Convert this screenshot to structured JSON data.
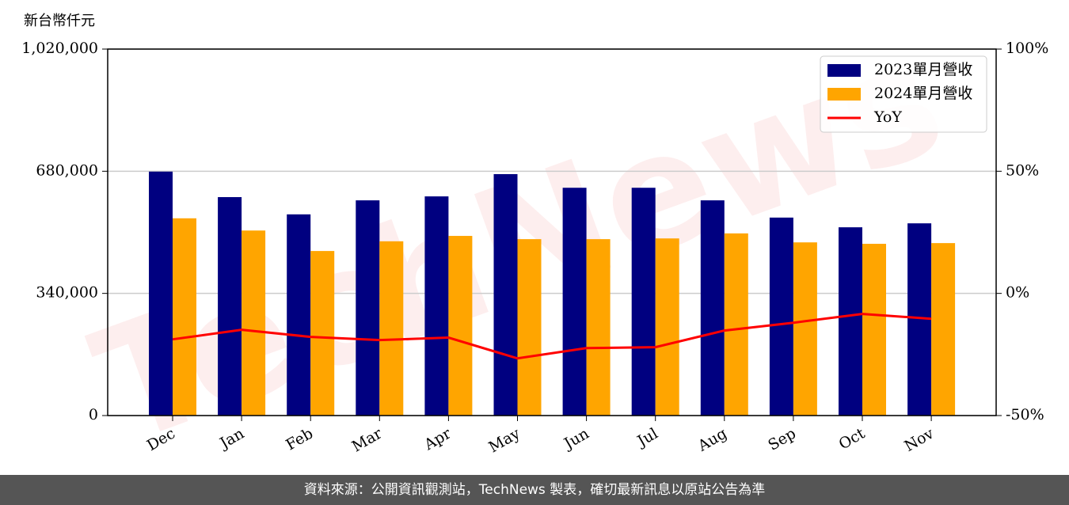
{
  "chart_data": {
    "type": "bar-line",
    "y_label": "新台幣仟元",
    "categories": [
      "Dec",
      "Jan",
      "Feb",
      "Mar",
      "Apr",
      "May",
      "Jun",
      "Jul",
      "Aug",
      "Sep",
      "Oct",
      "Nov"
    ],
    "series": [
      {
        "name": "2023單月營收",
        "color": "#000080",
        "type": "bar",
        "values": [
          679000,
          608000,
          560000,
          599000,
          610000,
          672000,
          634000,
          634000,
          599000,
          551000,
          524000,
          535000
        ]
      },
      {
        "name": "2024單月營收",
        "color": "#ffa500",
        "type": "bar",
        "values": [
          549000,
          515000,
          458000,
          485000,
          500000,
          491000,
          491000,
          493000,
          507000,
          482000,
          478000,
          480000
        ]
      },
      {
        "name": "YoY",
        "color": "#ff0000",
        "type": "line",
        "axis": "y2",
        "values": [
          -18.8,
          -14.9,
          -17.8,
          -19.1,
          -18.1,
          -26.6,
          -22.4,
          -22.0,
          -15.2,
          -12.0,
          -8.4,
          -10.4
        ]
      }
    ],
    "ylim": [
      0,
      1020000
    ],
    "yticks": [
      0,
      {
        "value": 340000,
        "label": "340,000"
      },
      {
        "value": 680000,
        "label": "680,000"
      },
      {
        "value": 1020000,
        "label": "1,020,000"
      }
    ],
    "y2lim": [
      -50,
      100
    ],
    "y2ticks": [
      {
        "value": -50,
        "label": "-50%"
      },
      {
        "value": 0,
        "label": "0%"
      },
      {
        "value": 50,
        "label": "50%"
      },
      {
        "value": 100,
        "label": "100%"
      }
    ],
    "grid": true,
    "legend": "upper right",
    "watermark": "TechNews",
    "source": "資料來源：公開資訊觀測站，TechNews 製表，確切最新訊息以原站公告為準"
  }
}
